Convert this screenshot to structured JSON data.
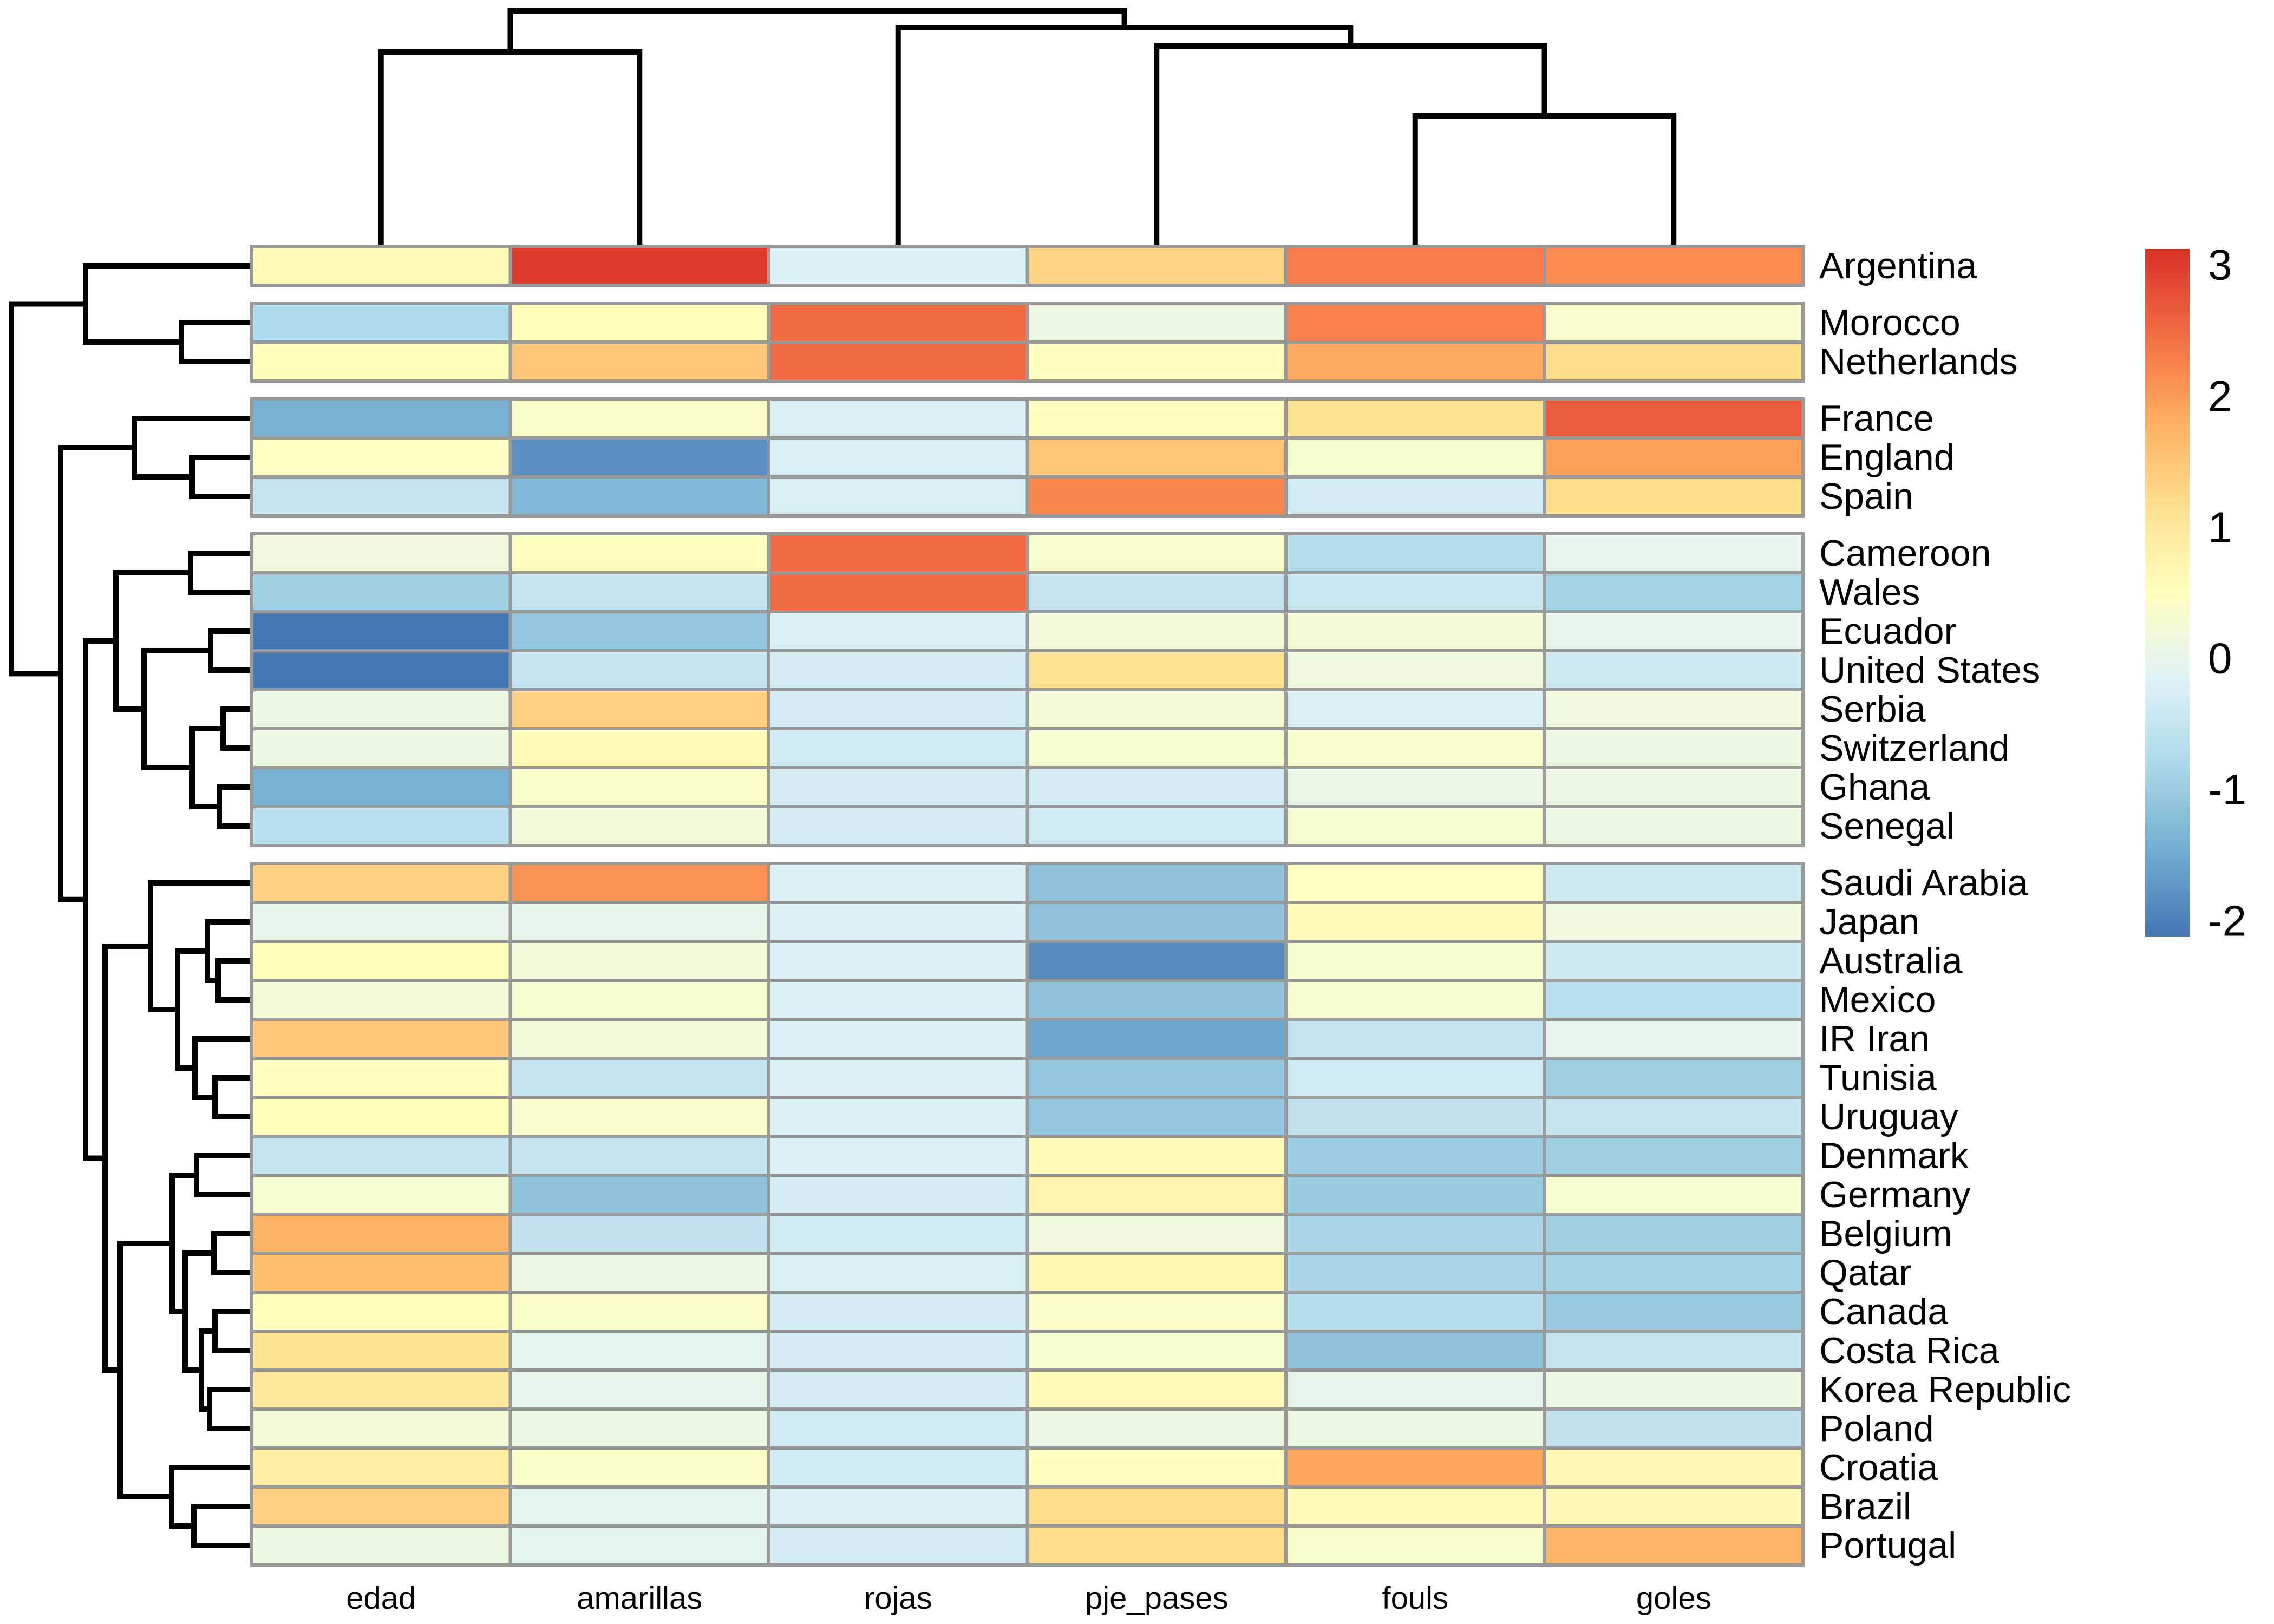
{
  "figure": {
    "kind": "clustered-heatmap",
    "background": "#ffffff",
    "grid_border_color": "#999999",
    "dendrogram_color": "#000000"
  },
  "chart_data": {
    "type": "heatmap",
    "title": "",
    "xlabel": "",
    "ylabel": "",
    "columns": [
      "edad",
      "amarillas",
      "rojas",
      "pje_pases",
      "fouls",
      "goles"
    ],
    "rows": [
      "Argentina",
      "Morocco",
      "Netherlands",
      "France",
      "England",
      "Spain",
      "Cameroon",
      "Wales",
      "Ecuador",
      "United States",
      "Serbia",
      "Switzerland",
      "Ghana",
      "Senegal",
      "Saudi Arabia",
      "Japan",
      "Australia",
      "Mexico",
      "IR Iran",
      "Tunisia",
      "Uruguay",
      "Denmark",
      "Germany",
      "Belgium",
      "Qatar",
      "Canada",
      "Costa Rica",
      "Korea Republic",
      "Poland",
      "Croatia",
      "Brazil",
      "Portugal"
    ],
    "row_cluster_sizes": [
      1,
      2,
      3,
      8,
      18
    ],
    "values": [
      [
        0.6,
        3.0,
        -0.2,
        1.3,
        2.3,
        2.15
      ],
      [
        -0.8,
        0.55,
        2.5,
        0.1,
        2.25,
        0.35
      ],
      [
        0.55,
        1.5,
        2.5,
        0.5,
        1.85,
        1.2
      ],
      [
        -1.4,
        0.4,
        -0.2,
        0.5,
        1.1,
        2.65
      ],
      [
        0.45,
        -1.8,
        -0.2,
        1.5,
        0.3,
        1.95
      ],
      [
        -0.5,
        -1.3,
        -0.25,
        2.2,
        -0.3,
        1.2
      ],
      [
        0.15,
        0.5,
        2.5,
        0.35,
        -0.7,
        0.0
      ],
      [
        -0.95,
        -0.5,
        2.5,
        -0.5,
        -0.45,
        -0.9
      ],
      [
        -2.1,
        -1.1,
        -0.2,
        0.2,
        0.25,
        0.0
      ],
      [
        -2.1,
        -0.5,
        -0.3,
        1.1,
        0.15,
        -0.4
      ],
      [
        0.1,
        1.35,
        -0.3,
        0.25,
        -0.25,
        0.15
      ],
      [
        0.1,
        0.6,
        -0.35,
        0.3,
        0.35,
        0.1
      ],
      [
        -1.4,
        0.4,
        -0.3,
        -0.3,
        0.05,
        0.1
      ],
      [
        -0.65,
        0.2,
        -0.3,
        -0.35,
        0.3,
        0.1
      ],
      [
        1.35,
        2.1,
        -0.2,
        -1.15,
        0.45,
        -0.4
      ],
      [
        0.0,
        0.0,
        -0.2,
        -1.15,
        0.6,
        0.15
      ],
      [
        0.55,
        0.2,
        -0.2,
        -1.85,
        0.3,
        -0.4
      ],
      [
        0.25,
        0.3,
        -0.2,
        -1.15,
        0.3,
        -0.65
      ],
      [
        1.5,
        0.2,
        -0.2,
        -1.55,
        -0.5,
        0.0
      ],
      [
        0.5,
        -0.5,
        -0.2,
        -1.1,
        -0.35,
        -0.95
      ],
      [
        0.55,
        0.35,
        -0.2,
        -1.1,
        -0.55,
        -0.5
      ],
      [
        -0.5,
        -0.5,
        -0.2,
        0.6,
        -1.0,
        -0.95
      ],
      [
        0.3,
        -1.15,
        -0.3,
        0.75,
        -1.05,
        0.3
      ],
      [
        1.75,
        -0.55,
        -0.35,
        0.15,
        -0.85,
        -0.95
      ],
      [
        1.6,
        0.1,
        -0.25,
        0.7,
        -0.85,
        -0.9
      ],
      [
        0.55,
        0.4,
        -0.3,
        0.4,
        -0.7,
        -1.05
      ],
      [
        1.1,
        -0.05,
        -0.3,
        0.3,
        -1.15,
        -0.5
      ],
      [
        1.0,
        0.0,
        -0.3,
        0.6,
        0.0,
        0.1
      ],
      [
        0.25,
        0.1,
        -0.35,
        0.1,
        0.1,
        -0.55
      ],
      [
        0.9,
        0.4,
        -0.35,
        0.5,
        1.9,
        0.65
      ],
      [
        1.35,
        -0.05,
        -0.2,
        1.2,
        0.6,
        0.65
      ],
      [
        0.1,
        -0.05,
        -0.3,
        1.2,
        0.35,
        1.7
      ]
    ],
    "colorbar": {
      "tick_labels": [
        "3",
        "2",
        "1",
        "0",
        "-1",
        "-2"
      ],
      "tick_values": [
        3,
        2,
        1,
        0,
        -1,
        -2
      ],
      "vmin": -2.12,
      "vmax": 3.12,
      "palette_low_to_high": [
        "#4575B4",
        "#74ADD1",
        "#ABD9E9",
        "#E0F3F8",
        "#FFFFBF",
        "#FEE090",
        "#FDAE61",
        "#F46D43",
        "#D73027"
      ],
      "legend_position": "right"
    },
    "grid": true,
    "col_dendrogram": {
      "pos": 20,
      "children": [
        {
          "pos": 96,
          "children": [
            {
              "leaf": "edad"
            },
            {
              "leaf": "amarillas"
            }
          ]
        },
        {
          "pos": 51,
          "children": [
            {
              "leaf": "rojas"
            },
            {
              "pos": 85,
              "children": [
                {
                  "leaf": "pje_pases"
                },
                {
                  "pos": 214,
                  "children": [
                    {
                      "leaf": "fouls"
                    },
                    {
                      "leaf": "goles"
                    }
                  ]
                }
              ]
            }
          ]
        }
      ]
    },
    "row_dendrogram": {
      "pos": 21,
      "children": [
        {
          "pos": 158,
          "children": [
            {
              "leaf": "Argentina"
            },
            {
              "pos": 335,
              "children": [
                {
                  "leaf": "Morocco"
                },
                {
                  "leaf": "Netherlands"
                }
              ]
            }
          ]
        },
        {
          "pos": 112,
          "children": [
            {
              "pos": 248,
              "children": [
                {
                  "leaf": "France"
                },
                {
                  "pos": 355,
                  "children": [
                    {
                      "leaf": "England"
                    },
                    {
                      "leaf": "Spain"
                    }
                  ]
                }
              ]
            },
            {
              "pos": 158,
              "children": [
                {
                  "pos": 214,
                  "children": [
                    {
                      "pos": 352,
                      "children": [
                        {
                          "leaf": "Cameroon"
                        },
                        {
                          "leaf": "Wales"
                        }
                      ]
                    },
                    {
                      "pos": 266,
                      "children": [
                        {
                          "pos": 389,
                          "children": [
                            {
                              "leaf": "Ecuador"
                            },
                            {
                              "leaf": "United States"
                            }
                          ]
                        },
                        {
                          "pos": 355,
                          "children": [
                            {
                              "pos": 412,
                              "children": [
                                {
                                  "leaf": "Serbia"
                                },
                                {
                                  "leaf": "Switzerland"
                                }
                              ]
                            },
                            {
                              "pos": 405,
                              "children": [
                                {
                                  "leaf": "Ghana"
                                },
                                {
                                  "leaf": "Senegal"
                                }
                              ]
                            }
                          ]
                        }
                      ]
                    }
                  ]
                },
                {
                  "pos": 194,
                  "children": [
                    {
                      "pos": 278,
                      "children": [
                        {
                          "leaf": "Saudi Arabia"
                        },
                        {
                          "pos": 328,
                          "children": [
                            {
                              "pos": 383,
                              "children": [
                                {
                                  "leaf": "Japan"
                                },
                                {
                                  "pos": 403,
                                  "children": [
                                    {
                                      "leaf": "Australia"
                                    },
                                    {
                                      "leaf": "Mexico"
                                    }
                                  ]
                                }
                              ]
                            },
                            {
                              "pos": 360,
                              "children": [
                                {
                                  "leaf": "IR Iran"
                                },
                                {
                                  "pos": 397,
                                  "children": [
                                    {
                                      "leaf": "Tunisia"
                                    },
                                    {
                                      "leaf": "Uruguay"
                                    }
                                  ]
                                }
                              ]
                            }
                          ]
                        }
                      ]
                    },
                    {
                      "pos": 222,
                      "children": [
                        {
                          "pos": 318,
                          "children": [
                            {
                              "pos": 363,
                              "children": [
                                {
                                  "leaf": "Denmark"
                                },
                                {
                                  "leaf": "Germany"
                                }
                              ]
                            },
                            {
                              "pos": 342,
                              "children": [
                                {
                                  "pos": 395,
                                  "children": [
                                    {
                                      "leaf": "Belgium"
                                    },
                                    {
                                      "leaf": "Qatar"
                                    }
                                  ]
                                },
                                {
                                  "pos": 372,
                                  "children": [
                                    {
                                      "pos": 397,
                                      "children": [
                                        {
                                          "leaf": "Canada"
                                        },
                                        {
                                          "leaf": "Costa Rica"
                                        }
                                      ]
                                    },
                                    {
                                      "pos": 387,
                                      "children": [
                                        {
                                          "leaf": "Korea Republic"
                                        },
                                        {
                                          "leaf": "Poland"
                                        }
                                      ]
                                    }
                                  ]
                                }
                              ]
                            }
                          ]
                        },
                        {
                          "pos": 317,
                          "children": [
                            {
                              "leaf": "Croatia"
                            },
                            {
                              "pos": 358,
                              "children": [
                                {
                                  "leaf": "Brazil"
                                },
                                {
                                  "leaf": "Portugal"
                                }
                              ]
                            }
                          ]
                        }
                      ]
                    }
                  ]
                }
              ]
            }
          ]
        }
      ]
    }
  }
}
